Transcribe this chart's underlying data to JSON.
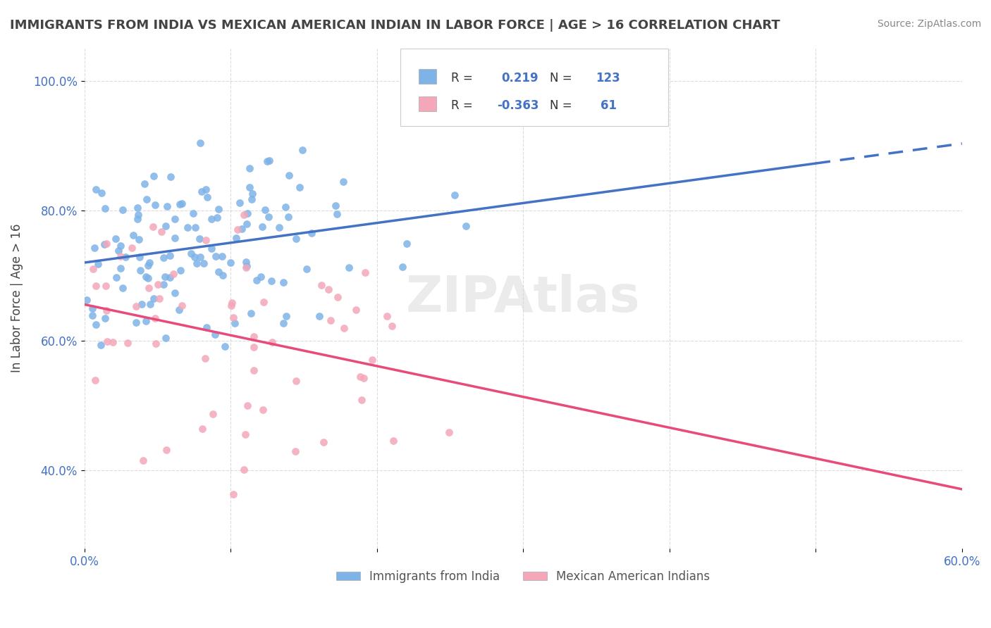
{
  "title": "IMMIGRANTS FROM INDIA VS MEXICAN AMERICAN INDIAN IN LABOR FORCE | AGE > 16 CORRELATION CHART",
  "source": "Source: ZipAtlas.com",
  "xlabel": "",
  "ylabel": "In Labor Force | Age > 16",
  "xlim": [
    0.0,
    0.6
  ],
  "ylim": [
    0.28,
    1.05
  ],
  "yticks": [
    0.4,
    0.6,
    0.8,
    1.0
  ],
  "ytick_labels": [
    "40.0%",
    "60.0%",
    "80.0%",
    "100.0%"
  ],
  "xticks": [
    0.0,
    0.1,
    0.2,
    0.3,
    0.4,
    0.5,
    0.6
  ],
  "xtick_labels": [
    "0.0%",
    "",
    "",
    "",
    "",
    "",
    "60.0%"
  ],
  "blue_R": 0.219,
  "blue_N": 123,
  "pink_R": -0.363,
  "pink_N": 61,
  "blue_color": "#7EB3E8",
  "pink_color": "#F4A7B9",
  "blue_line_color": "#4472C4",
  "pink_line_color": "#E84B7A",
  "watermark": "ZIPAtlas",
  "background_color": "#FFFFFF",
  "grid_color": "#CCCCCC",
  "legend_text_color": "#4472C4",
  "label_color": "#333333",
  "source_color": "#888888"
}
